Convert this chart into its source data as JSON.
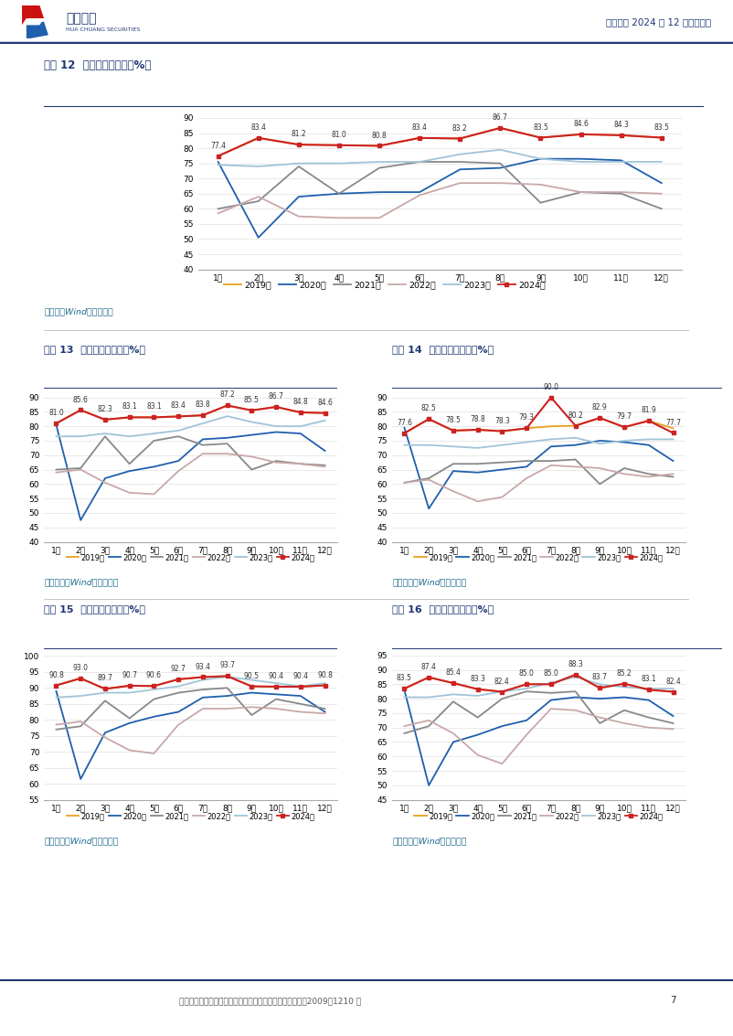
{
  "page_title": "航空行业 2024 年 12 月数据点评",
  "footer_text": "证监会审核华创证券投资咨询业务资格批文号：证监许可（2009）1210 号",
  "page_number": "7",
  "source_text": "资料来源：Wind、华创证券",
  "source_text_top": "料来源：Wind、华创证券",
  "months": [
    "1月",
    "2月",
    "3月",
    "4月",
    "5月",
    "6月",
    "7月",
    "8月",
    "9月",
    "10月",
    "11月",
    "12月"
  ],
  "years": [
    "2019年",
    "2020年",
    "2021年",
    "2022年",
    "2023年",
    "2024年"
  ],
  "year_colors": [
    "#E8A020",
    "#1F5FAD",
    "#888888",
    "#C8A8A8",
    "#A0C4D8",
    "#CC2222"
  ],
  "chart12": {
    "title": "图表 12  东方航空客座率（%）",
    "ylim": [
      40,
      92
    ],
    "yticks": [
      40,
      45,
      50,
      55,
      60,
      65,
      70,
      75,
      80,
      85,
      90
    ],
    "data_2019": [
      77.4,
      83.4,
      81.2,
      81.0,
      80.8,
      83.4,
      83.2,
      86.7,
      83.5,
      84.6,
      84.3,
      83.5
    ],
    "data_2020": [
      75.5,
      50.5,
      64.0,
      65.0,
      65.5,
      65.5,
      73.0,
      73.5,
      76.5,
      76.5,
      76.0,
      68.5
    ],
    "data_2021": [
      60.0,
      62.5,
      74.0,
      65.0,
      73.5,
      75.5,
      75.5,
      75.0,
      62.0,
      65.5,
      65.0,
      60.0
    ],
    "data_2022": [
      58.5,
      64.0,
      57.5,
      57.0,
      57.0,
      64.5,
      68.5,
      68.5,
      68.0,
      65.5,
      65.5,
      65.0
    ],
    "data_2023": [
      74.5,
      74.0,
      75.0,
      75.0,
      75.5,
      75.5,
      78.0,
      79.5,
      76.5,
      75.5,
      75.5,
      75.5
    ],
    "data_2024": [
      77.4,
      83.4,
      81.2,
      81.0,
      80.8,
      83.4,
      83.2,
      86.7,
      83.5,
      84.6,
      84.3,
      83.5
    ],
    "labels_2024": [
      "77.4",
      "83.4",
      "81.2",
      "81.0",
      "80.8",
      "83.4",
      "83.2",
      "86.7",
      "83.5",
      "84.6",
      "84.3",
      "83.5"
    ]
  },
  "chart13": {
    "title": "图表 13  南方航空客座率（%）",
    "ylim": [
      40,
      92
    ],
    "yticks": [
      40,
      45,
      50,
      55,
      60,
      65,
      70,
      75,
      80,
      85,
      90
    ],
    "data_2019": [
      81.0,
      85.6,
      82.3,
      83.1,
      83.1,
      83.4,
      83.8,
      87.2,
      85.5,
      86.7,
      84.8,
      84.6
    ],
    "data_2020": [
      80.5,
      47.5,
      62.0,
      64.5,
      66.0,
      68.0,
      75.5,
      76.0,
      77.0,
      78.0,
      77.5,
      71.5
    ],
    "data_2021": [
      65.0,
      65.5,
      76.5,
      67.0,
      75.0,
      76.5,
      73.5,
      74.0,
      65.0,
      68.0,
      67.0,
      66.5
    ],
    "data_2022": [
      64.0,
      65.0,
      60.5,
      57.0,
      56.5,
      64.5,
      70.5,
      70.5,
      69.5,
      67.5,
      67.0,
      66.0
    ],
    "data_2023": [
      76.5,
      76.5,
      77.5,
      76.5,
      77.5,
      78.5,
      81.0,
      83.5,
      81.5,
      80.0,
      80.0,
      82.0
    ],
    "data_2024": [
      81.0,
      85.6,
      82.3,
      83.1,
      83.1,
      83.4,
      83.8,
      87.2,
      85.5,
      86.7,
      84.8,
      84.6
    ],
    "labels_2024": [
      "81.0",
      "85.6",
      "82.3",
      "83.1",
      "83.1",
      "83.4",
      "83.8",
      "87.2",
      "85.5",
      "86.7",
      "84.8",
      "84.6"
    ]
  },
  "chart14": {
    "title": "图表 14  中国国航客座率（%）",
    "ylim": [
      40,
      92
    ],
    "yticks": [
      40,
      45,
      50,
      55,
      60,
      65,
      70,
      75,
      80,
      85,
      90
    ],
    "data_2019": [
      77.6,
      82.5,
      78.5,
      78.8,
      78.3,
      79.3,
      80.0,
      80.2,
      82.9,
      79.7,
      81.9,
      79.3
    ],
    "data_2020": [
      79.5,
      51.5,
      64.5,
      64.0,
      65.0,
      66.0,
      73.0,
      73.5,
      75.0,
      74.5,
      73.5,
      68.0
    ],
    "data_2021": [
      60.5,
      62.0,
      67.0,
      67.0,
      67.5,
      68.0,
      68.0,
      68.5,
      60.0,
      65.5,
      63.5,
      62.5
    ],
    "data_2022": [
      60.5,
      61.5,
      57.5,
      54.0,
      55.5,
      62.0,
      66.5,
      66.0,
      65.5,
      63.5,
      62.5,
      63.5
    ],
    "data_2023": [
      73.5,
      73.5,
      73.0,
      72.5,
      73.5,
      74.5,
      75.5,
      76.0,
      74.0,
      75.0,
      75.5,
      75.5
    ],
    "data_2024": [
      77.6,
      82.5,
      78.5,
      78.8,
      78.3,
      79.3,
      90.0,
      80.2,
      82.9,
      79.7,
      81.9,
      77.7
    ],
    "labels_2024": [
      "77.6",
      "82.5",
      "78.5",
      "78.8",
      "78.3",
      "79.3",
      "90.0",
      "80.2",
      "82.9",
      "79.7",
      "81.9",
      "77.7"
    ]
  },
  "chart15": {
    "title": "图表 15  春秋航空客座率（%）",
    "ylim": [
      55,
      102
    ],
    "yticks": [
      55,
      60,
      65,
      70,
      75,
      80,
      85,
      90,
      95,
      100
    ],
    "data_2019": [
      90.8,
      93.0,
      89.7,
      90.7,
      90.6,
      92.7,
      93.4,
      93.7,
      90.5,
      90.4,
      90.4,
      90.8
    ],
    "data_2020": [
      89.0,
      61.5,
      76.0,
      79.0,
      81.0,
      82.5,
      87.0,
      87.5,
      88.5,
      88.0,
      87.5,
      82.5
    ],
    "data_2021": [
      77.0,
      78.0,
      86.0,
      80.5,
      86.5,
      88.5,
      89.5,
      90.0,
      81.5,
      86.5,
      85.0,
      83.5
    ],
    "data_2022": [
      78.5,
      79.5,
      74.5,
      70.5,
      69.5,
      78.5,
      83.5,
      83.5,
      84.0,
      83.5,
      82.5,
      82.0
    ],
    "data_2023": [
      87.0,
      87.5,
      88.5,
      88.5,
      89.5,
      90.5,
      92.5,
      93.5,
      92.5,
      91.5,
      90.5,
      91.5
    ],
    "data_2024": [
      90.8,
      93.0,
      89.7,
      90.7,
      90.6,
      92.7,
      93.4,
      93.7,
      90.5,
      90.4,
      90.4,
      90.8
    ],
    "labels_2024": [
      "90.8",
      "93.0",
      "89.7",
      "90.7",
      "90.6",
      "92.7",
      "93.4",
      "93.7",
      "90.5",
      "90.4",
      "90.4",
      "90.8"
    ]
  },
  "chart16": {
    "title": "图表 16  吉祥航空客座率（%）",
    "ylim": [
      45,
      97
    ],
    "yticks": [
      45,
      50,
      55,
      60,
      65,
      70,
      75,
      80,
      85,
      90,
      95
    ],
    "data_2019": [
      83.5,
      87.4,
      85.4,
      83.3,
      82.4,
      85.0,
      85.0,
      88.3,
      83.7,
      85.2,
      83.1,
      82.4
    ],
    "data_2020": [
      83.0,
      50.0,
      65.0,
      67.5,
      70.5,
      72.5,
      79.5,
      80.5,
      80.0,
      80.5,
      79.5,
      74.0
    ],
    "data_2021": [
      68.0,
      70.5,
      79.0,
      73.5,
      80.0,
      82.5,
      82.0,
      82.5,
      71.5,
      76.0,
      73.5,
      71.5
    ],
    "data_2022": [
      70.5,
      72.5,
      68.0,
      60.5,
      57.5,
      67.5,
      76.5,
      76.0,
      73.5,
      71.5,
      70.0,
      69.5
    ],
    "data_2023": [
      80.5,
      80.5,
      81.5,
      81.0,
      82.5,
      83.5,
      85.5,
      87.5,
      85.0,
      84.0,
      83.5,
      83.5
    ],
    "data_2024": [
      83.5,
      87.4,
      85.4,
      83.3,
      82.4,
      85.0,
      85.0,
      88.3,
      83.7,
      85.2,
      83.1,
      82.4
    ],
    "labels_2024": [
      "83.5",
      "87.4",
      "85.4",
      "83.3",
      "82.4",
      "85.0",
      "85.0",
      "88.3",
      "83.7",
      "85.2",
      "83.1",
      "82.4"
    ]
  }
}
